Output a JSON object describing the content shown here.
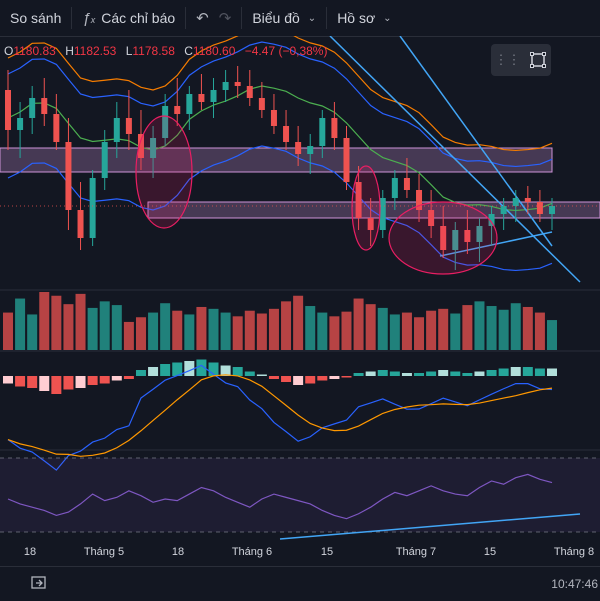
{
  "toolbar": {
    "compare_label": "So sánh",
    "indicators_label": "Các chỉ báo",
    "chart_type_label": "Biểu đồ",
    "profile_label": "Hồ sơ",
    "indicators_icon": "fx-icon",
    "undo_icon": "undo-icon",
    "redo_icon": "redo-icon"
  },
  "legend": {
    "open_key": "O",
    "open_value": "1180.83",
    "high_key": "H",
    "high_value": "1182.53",
    "low_key": "L",
    "low_value": "1178.58",
    "close_key": "C",
    "close_value": "1180.60",
    "change_value": "−4.47 (−0,38%)"
  },
  "colors": {
    "background": "#131722",
    "up": "#26a69a",
    "down": "#ef5350",
    "line_blue": "#2962ff",
    "rsi": "#7e57c2",
    "macd_signal": "#ff9800",
    "ma_orange": "#f57c00",
    "ma_green": "#4caf50"
  },
  "time_axis": [
    "18",
    "Tháng 5",
    "18",
    "Tháng 6",
    "15",
    "Tháng 7",
    "15",
    "Tháng 8"
  ],
  "bottom": {
    "clock": "10:47:46"
  },
  "chart_data": {
    "type": "candlestick",
    "title": "",
    "candles": [
      [
        1185,
        1190,
        1170,
        1175
      ],
      [
        1175,
        1182,
        1168,
        1178
      ],
      [
        1178,
        1186,
        1174,
        1183
      ],
      [
        1183,
        1188,
        1176,
        1179
      ],
      [
        1179,
        1184,
        1170,
        1172
      ],
      [
        1172,
        1178,
        1150,
        1155
      ],
      [
        1155,
        1162,
        1145,
        1148
      ],
      [
        1148,
        1165,
        1146,
        1163
      ],
      [
        1163,
        1175,
        1160,
        1172
      ],
      [
        1172,
        1182,
        1168,
        1178
      ],
      [
        1178,
        1185,
        1170,
        1174
      ],
      [
        1174,
        1180,
        1165,
        1168
      ],
      [
        1168,
        1176,
        1163,
        1173
      ],
      [
        1173,
        1184,
        1171,
        1181
      ],
      [
        1181,
        1188,
        1176,
        1179
      ],
      [
        1179,
        1186,
        1175,
        1184
      ],
      [
        1184,
        1189,
        1180,
        1182
      ],
      [
        1182,
        1188,
        1178,
        1185
      ],
      [
        1185,
        1190,
        1182,
        1187
      ],
      [
        1187,
        1191,
        1183,
        1186
      ],
      [
        1186,
        1190,
        1181,
        1183
      ],
      [
        1183,
        1187,
        1178,
        1180
      ],
      [
        1180,
        1184,
        1174,
        1176
      ],
      [
        1176,
        1180,
        1170,
        1172
      ],
      [
        1172,
        1176,
        1166,
        1169
      ],
      [
        1169,
        1174,
        1164,
        1171
      ],
      [
        1171,
        1180,
        1168,
        1178
      ],
      [
        1178,
        1182,
        1170,
        1173
      ],
      [
        1173,
        1176,
        1160,
        1162
      ],
      [
        1162,
        1166,
        1150,
        1153
      ],
      [
        1153,
        1158,
        1146,
        1150
      ],
      [
        1150,
        1160,
        1148,
        1158
      ],
      [
        1158,
        1165,
        1155,
        1163
      ],
      [
        1163,
        1168,
        1158,
        1160
      ],
      [
        1160,
        1164,
        1152,
        1155
      ],
      [
        1155,
        1160,
        1148,
        1151
      ],
      [
        1151,
        1156,
        1143,
        1145
      ],
      [
        1145,
        1152,
        1140,
        1150
      ],
      [
        1150,
        1155,
        1144,
        1147
      ],
      [
        1147,
        1153,
        1142,
        1151
      ],
      [
        1151,
        1156,
        1146,
        1154
      ],
      [
        1154,
        1158,
        1150,
        1156
      ],
      [
        1156,
        1160,
        1152,
        1158
      ],
      [
        1158,
        1161,
        1154,
        1157
      ],
      [
        1157,
        1160,
        1152,
        1154
      ],
      [
        1154,
        1158,
        1150,
        1156
      ]
    ],
    "volume": [
      40,
      55,
      38,
      62,
      58,
      49,
      60,
      45,
      52,
      48,
      30,
      35,
      40,
      50,
      42,
      38,
      46,
      44,
      40,
      36,
      42,
      39,
      44,
      52,
      58,
      47,
      40,
      36,
      41,
      55,
      49,
      45,
      38,
      40,
      35,
      42,
      44,
      39,
      48,
      52,
      47,
      43,
      50,
      46,
      40,
      32
    ],
    "macd_hist": [
      -5,
      -7,
      -8,
      -10,
      -12,
      -9,
      -8,
      -6,
      -5,
      -3,
      -2,
      4,
      6,
      8,
      9,
      10,
      11,
      9,
      7,
      6,
      3,
      1,
      -2,
      -4,
      -6,
      -5,
      -3,
      -2,
      -1,
      2,
      3,
      4,
      3,
      2,
      2,
      3,
      4,
      3,
      2,
      3,
      4,
      5,
      6,
      6,
      5,
      5
    ],
    "rsi": [
      45,
      42,
      40,
      38,
      35,
      37,
      42,
      48,
      44,
      46,
      50,
      47,
      43,
      45,
      44,
      48,
      52,
      50,
      46,
      43,
      40,
      45,
      48,
      46,
      44,
      42,
      38,
      35,
      33,
      36,
      40,
      45,
      49,
      47,
      50,
      53,
      50,
      48,
      47,
      52,
      56,
      54,
      58,
      60,
      57,
      55
    ]
  }
}
